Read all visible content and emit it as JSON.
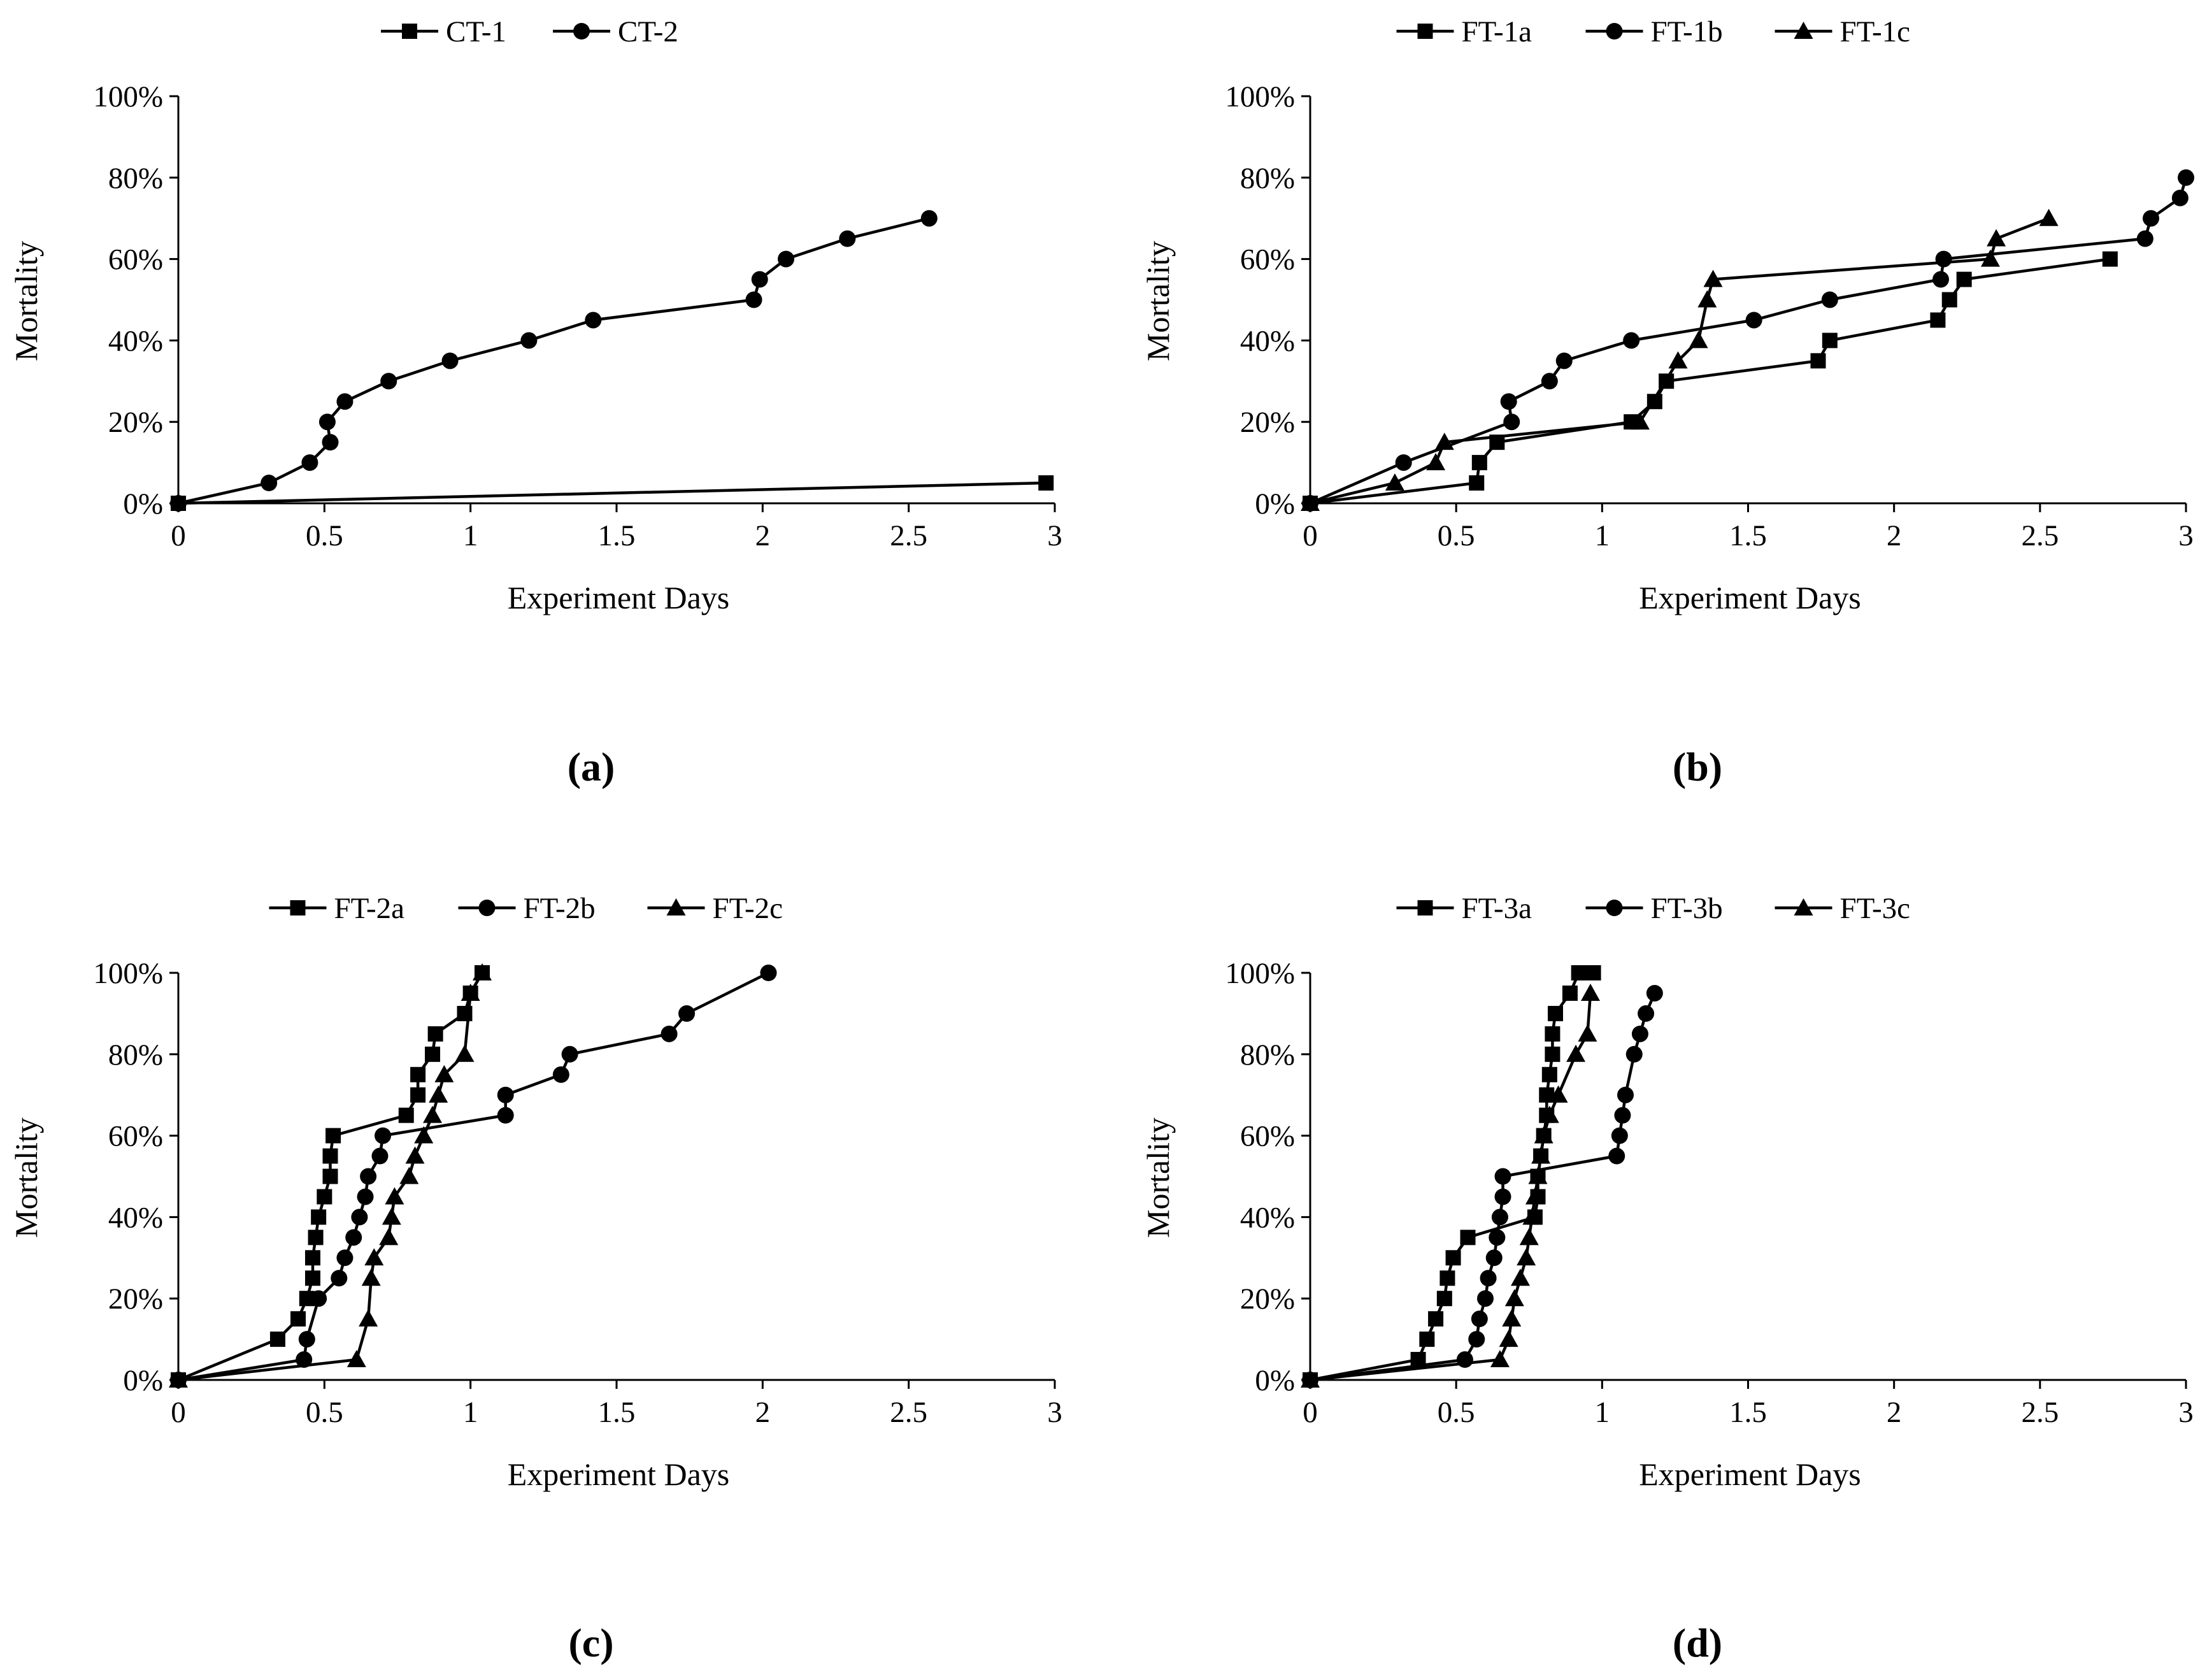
{
  "chart_data": [
    {
      "type": "line",
      "panel": "(a)",
      "xlabel": "Experiment  Days",
      "ylabel": "Mortality",
      "xlim": [
        0,
        3
      ],
      "ylim": [
        0,
        100
      ],
      "xticks": [
        "0",
        "0.5",
        "1",
        "1.5",
        "2",
        "2.5",
        "3"
      ],
      "yticks": [
        "0%",
        "20%",
        "40%",
        "60%",
        "80%",
        "100%"
      ],
      "legend_position": "top-center",
      "series": [
        {
          "name": "CT-1",
          "marker": "square",
          "x": [
            0,
            2.97
          ],
          "y": [
            0,
            5
          ]
        },
        {
          "name": "CT-2",
          "marker": "circle",
          "x": [
            0,
            0.31,
            0.45,
            0.52,
            0.51,
            0.57,
            0.72,
            0.93,
            1.2,
            1.42,
            1.97,
            1.99,
            2.08,
            2.29,
            2.57
          ],
          "y": [
            0,
            5,
            10,
            15,
            20,
            25,
            30,
            35,
            40,
            45,
            50,
            55,
            60,
            65,
            70
          ]
        }
      ]
    },
    {
      "type": "line",
      "panel": "(b)",
      "xlabel": "Experiment  Days",
      "ylabel": "Mortality",
      "xlim": [
        0,
        3
      ],
      "ylim": [
        0,
        100
      ],
      "xticks": [
        "0",
        "0.5",
        "1",
        "1.5",
        "2",
        "2.5",
        "3"
      ],
      "yticks": [
        "0%",
        "20%",
        "40%",
        "60%",
        "80%",
        "100%"
      ],
      "legend_position": "top-center",
      "series": [
        {
          "name": "FT-1a",
          "marker": "square",
          "x": [
            0,
            0.57,
            0.58,
            0.64,
            1.1,
            1.18,
            1.22,
            1.74,
            1.78,
            2.15,
            2.19,
            2.24,
            2.74
          ],
          "y": [
            0,
            5,
            10,
            15,
            20,
            25,
            30,
            35,
            40,
            45,
            50,
            55,
            60
          ]
        },
        {
          "name": "FT-1b",
          "marker": "circle",
          "x": [
            0,
            0.32,
            0.69,
            0.68,
            0.82,
            0.87,
            1.1,
            1.52,
            1.78,
            2.16,
            2.17,
            2.86,
            2.88,
            2.98,
            3.0
          ],
          "y": [
            0,
            10,
            20,
            25,
            30,
            35,
            40,
            45,
            50,
            55,
            60,
            65,
            70,
            75,
            80
          ]
        },
        {
          "name": "FT-1c",
          "marker": "triangle",
          "x": [
            0,
            0.29,
            0.43,
            0.46,
            1.13,
            1.26,
            1.33,
            1.36,
            1.38,
            2.33,
            2.35,
            2.53
          ],
          "y": [
            0,
            5,
            10,
            15,
            20,
            35,
            40,
            50,
            55,
            60,
            65,
            70
          ]
        }
      ]
    },
    {
      "type": "line",
      "panel": "(c)",
      "xlabel": "Experiment  Days",
      "ylabel": "Mortality",
      "xlim": [
        0,
        3
      ],
      "ylim": [
        0,
        100
      ],
      "xticks": [
        "0",
        "0.5",
        "1",
        "1.5",
        "2",
        "2.5",
        "3"
      ],
      "yticks": [
        "0%",
        "20%",
        "40%",
        "60%",
        "80%",
        "100%"
      ],
      "legend_position": "top-center",
      "series": [
        {
          "name": "FT-2a",
          "marker": "square",
          "x": [
            0,
            0.34,
            0.41,
            0.44,
            0.46,
            0.46,
            0.47,
            0.48,
            0.5,
            0.52,
            0.52,
            0.53,
            0.78,
            0.82,
            0.82,
            0.87,
            0.88,
            0.98,
            1.0,
            1.04
          ],
          "y": [
            0,
            10,
            15,
            20,
            25,
            30,
            35,
            40,
            45,
            50,
            55,
            60,
            65,
            70,
            75,
            80,
            85,
            90,
            95,
            100
          ]
        },
        {
          "name": "FT-2b",
          "marker": "circle",
          "x": [
            0,
            0.43,
            0.44,
            0.48,
            0.55,
            0.57,
            0.6,
            0.62,
            0.64,
            0.65,
            0.69,
            0.7,
            1.12,
            1.12,
            1.31,
            1.34,
            1.68,
            1.74,
            2.02
          ],
          "y": [
            0,
            5,
            10,
            20,
            25,
            30,
            35,
            40,
            45,
            50,
            55,
            60,
            65,
            70,
            75,
            80,
            85,
            90,
            100
          ]
        },
        {
          "name": "FT-2c",
          "marker": "triangle",
          "x": [
            0,
            0.61,
            0.65,
            0.66,
            0.67,
            0.72,
            0.73,
            0.74,
            0.79,
            0.81,
            0.84,
            0.87,
            0.89,
            0.91,
            0.98,
            1.0,
            1.04
          ],
          "y": [
            0,
            5,
            15,
            25,
            30,
            35,
            40,
            45,
            50,
            55,
            60,
            65,
            70,
            75,
            80,
            95,
            100
          ]
        }
      ]
    },
    {
      "type": "line",
      "panel": "(d)",
      "xlabel": "Experiment  Days",
      "ylabel": "Mortality",
      "xlim": [
        0,
        3
      ],
      "ylim": [
        0,
        100
      ],
      "xticks": [
        "0",
        "0.5",
        "1",
        "1.5",
        "2",
        "2.5",
        "3"
      ],
      "yticks": [
        "0%",
        "20%",
        "40%",
        "60%",
        "80%",
        "100%"
      ],
      "legend_position": "top-center",
      "series": [
        {
          "name": "FT-3a",
          "marker": "square",
          "x": [
            0,
            0.37,
            0.4,
            0.43,
            0.46,
            0.47,
            0.49,
            0.54,
            0.77,
            0.78,
            0.78,
            0.79,
            0.8,
            0.81,
            0.81,
            0.82,
            0.83,
            0.83,
            0.84,
            0.89,
            0.92,
            0.97
          ],
          "y": [
            0,
            5,
            10,
            15,
            20,
            25,
            30,
            35,
            40,
            45,
            50,
            55,
            60,
            65,
            70,
            75,
            80,
            85,
            90,
            95,
            100,
            100
          ]
        },
        {
          "name": "FT-3b",
          "marker": "circle",
          "x": [
            0,
            0.53,
            0.57,
            0.58,
            0.6,
            0.61,
            0.63,
            0.64,
            0.65,
            0.66,
            0.66,
            1.05,
            1.06,
            1.07,
            1.08,
            1.11,
            1.13,
            1.15,
            1.18
          ],
          "y": [
            0,
            5,
            10,
            15,
            20,
            25,
            30,
            35,
            40,
            45,
            50,
            55,
            60,
            65,
            70,
            80,
            85,
            90,
            95
          ]
        },
        {
          "name": "FT-3c",
          "marker": "triangle",
          "x": [
            0,
            0.65,
            0.68,
            0.69,
            0.7,
            0.72,
            0.74,
            0.75,
            0.76,
            0.77,
            0.78,
            0.79,
            0.8,
            0.82,
            0.85,
            0.91,
            0.95,
            0.96
          ],
          "y": [
            0,
            5,
            10,
            15,
            20,
            25,
            30,
            35,
            40,
            45,
            50,
            55,
            60,
            65,
            70,
            80,
            85,
            95
          ]
        }
      ]
    }
  ],
  "captions": [
    "(a)",
    "(b)",
    "(c)",
    "(d)"
  ],
  "colors": {
    "ink": "#000000",
    "background": "#ffffff"
  }
}
